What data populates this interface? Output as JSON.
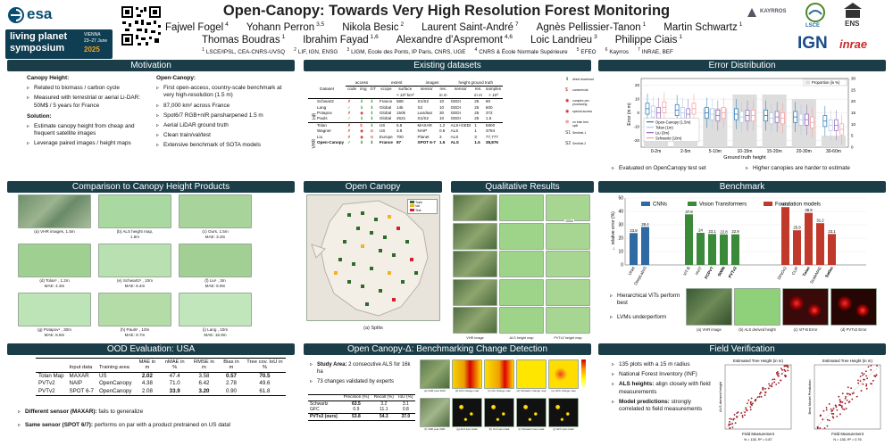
{
  "header": {
    "title": "Open-Canopy: Towards Very High Resolution Forest Monitoring",
    "esa": "esa",
    "lps_line1": "living planet",
    "lps_line2": "symposium",
    "lps_city": "VIENNA",
    "lps_dates": "23–27 June",
    "lps_year": "2025",
    "authors_line1": [
      {
        "name": "Fajwel Fogel",
        "sup": "4"
      },
      {
        "name": "Yohann Perron",
        "sup": "3,5"
      },
      {
        "name": "Nikola Besic",
        "sup": "2"
      },
      {
        "name": "Laurent Saint-André",
        "sup": "7"
      },
      {
        "name": "Agnès Pellissier-Tanon",
        "sup": "1"
      },
      {
        "name": "Martin Schwartz",
        "sup": "1"
      }
    ],
    "authors_line2": [
      {
        "name": "Thomas Boudras",
        "sup": "1"
      },
      {
        "name": "Ibrahim Fayad",
        "sup": "1,6"
      },
      {
        "name": "Alexandre d'Aspremont",
        "sup": "4,6"
      },
      {
        "name": "Loic Landrieu",
        "sup": "3"
      },
      {
        "name": "Philippe Ciais",
        "sup": "1"
      }
    ],
    "affiliations": [
      {
        "n": "1",
        "t": "LSCE/IPSL, CEA-CNRS-UVSQ"
      },
      {
        "n": "2",
        "t": "LIF, IGN, ENSG"
      },
      {
        "n": "3",
        "t": "LIGM, Ecole des Ponts, IP Paris, CNRS, UGE"
      },
      {
        "n": "4",
        "t": "CNRS & École Normale Supérieure"
      },
      {
        "n": "5",
        "t": "EFEO"
      },
      {
        "n": "6",
        "t": "Kayrros"
      },
      {
        "n": "7",
        "t": "INRAE, BEF"
      }
    ],
    "logos": [
      "KAYRROS",
      "LSCE",
      "ENS",
      "IGN",
      "inrae"
    ]
  },
  "motivation": {
    "title": "Motivation",
    "left_heading": "Canopy Height:",
    "left_bullets": [
      "Related to biomass / carbon cycle",
      "Measured with terrestrial or aerial Li-DAR: 50M$ / 5 years for France"
    ],
    "solution_heading": "Solution:",
    "solution_bullets": [
      "Estimate canopy height from cheap and frequent satellite images",
      "Leverage paired images / height maps"
    ],
    "right_heading": "Open-Canopy:",
    "right_bullets": [
      "First open-access, country-scale benchmark at very high-resolution (1.5 m)",
      "87,000 km² across France",
      "Spot6/7 RGB+nIR pansharpened  1.5 m",
      "Aerial LiDAR ground truth",
      "Clean train/val/test",
      "Extensive benchmark of SOTA models"
    ]
  },
  "datasets": {
    "title": "Existing datasets",
    "group_headers": [
      "access",
      "extent",
      "images",
      "height ground truth"
    ],
    "col_headers": [
      "Dataset",
      "code",
      "img",
      "GT",
      "scope",
      "surface",
      "sensor",
      "res.",
      "sensor",
      "res.",
      "samples"
    ],
    "units": [
      "",
      "",
      "",
      "",
      "",
      "× 10³ km²",
      "",
      "in m",
      "",
      "in m",
      "× 10³"
    ],
    "hr_label": "HR",
    "vhr_label": "VHR",
    "rows_hr": [
      [
        "Schwartz",
        "✗",
        "⬇",
        "⬇",
        "France",
        "588",
        "S1/S2",
        "10",
        "GEDI",
        "25",
        "90"
      ],
      [
        "Lang",
        "✓",
        "⬇",
        "⬇",
        "Global",
        "14k",
        "S2",
        "10",
        "GEDI",
        "25",
        "600"
      ],
      [
        "Potapov",
        "✗",
        "◉",
        "⬇",
        "Global",
        "150k",
        "Landsat",
        "30",
        "GEDI",
        "25",
        "372"
      ],
      [
        "Pauls",
        "✓",
        "⬇",
        "⬇",
        "Global",
        "2621",
        "S1/S2",
        "10",
        "GEDI",
        "25",
        "1.5"
      ]
    ],
    "rows_vhr": [
      [
        "Tolan",
        "✗",
        "$",
        "⬇",
        "US",
        "5.8",
        "MAXAR",
        "1.2",
        "ALS+GEDI",
        "1",
        "5800"
      ],
      [
        "Wagner",
        "✗",
        "◉",
        "⊘",
        "US",
        "3.8",
        "NAIP",
        "0.6",
        "ALS",
        "1",
        "3784"
      ],
      [
        "Liu",
        "✗",
        "◉",
        "⊘",
        "Europe",
        "700",
        "Planet",
        "3",
        "ALS",
        "3",
        "77,777"
      ],
      [
        "Open-Canopy",
        "✓",
        "⬇",
        "⬇",
        "France",
        "87",
        "SPOT 6-7",
        "1.5",
        "ALS",
        "1.5",
        "38,876"
      ]
    ],
    "legend": [
      {
        "icon": "⬇",
        "t": "direct download"
      },
      {
        "icon": "$",
        "t": "commercial"
      },
      {
        "icon": "◉",
        "t": "complex pre-processing"
      },
      {
        "icon": "◉",
        "t": "special access"
      },
      {
        "icon": "⊘",
        "t": "no train test split"
      },
      {
        "icon": "S1",
        "t": "Sentinel-1"
      },
      {
        "icon": "S2",
        "t": "Sentinel-2"
      }
    ]
  },
  "error_dist": {
    "title": "Error Distribution",
    "legend_prop": "Proportion (in %)",
    "ylabel": "Error (in m)",
    "xlabel": "Ground truth height",
    "y2label": "",
    "series": [
      {
        "name": "Open-Canopy (1.5m)",
        "color": "#1f77b4"
      },
      {
        "name": "Tolan (1m)",
        "color": "#aec7e8"
      },
      {
        "name": "Liu (3m)",
        "color": "#9467bd"
      },
      {
        "name": "Schwartz (10m)",
        "color": "#ff9896"
      }
    ],
    "categories": [
      "0-2m",
      "2-5m",
      "5-10m",
      "10-15m",
      "15-20m",
      "20-30m",
      "30-60m"
    ],
    "yticks": [
      "20",
      "10",
      "0",
      "-10",
      "-20"
    ],
    "y2ticks": [
      "30",
      "25",
      "20",
      "15",
      "10",
      "5",
      "0"
    ],
    "notes": [
      "Evaluated on OpenCanopy test set",
      "Higher canopies are harder to estimate"
    ]
  },
  "comparison": {
    "title": "Comparison to Canopy Height Products",
    "captions": [
      [
        "(a) VHR images, 1.5m",
        ""
      ],
      [
        "(b) ALS height map,",
        "1.5m"
      ],
      [
        "(c) Ours, 1.5m",
        "MAE: 3.3m"
      ],
      [
        "(d) Tolan¹ , 1.2m",
        "MAE: 4.3m"
      ],
      [
        "(e) Schwartz¹ , 10m",
        "MAE: 6.4m"
      ],
      [
        "(f) Liu¹ , 3m",
        "MAE: 6.9m"
      ],
      [
        "(g) Potapov¹ , 30m",
        "MAE: 8.8m"
      ],
      [
        "(h) Pauls¹ , 10m",
        "MAE: 9.7m"
      ],
      [
        "(i) Lang , 10m",
        "MAE: 15.9m"
      ]
    ]
  },
  "open_canopy": {
    "title": "Open Canopy",
    "caption": "(a) Splits",
    "legend": [
      "Train",
      "Val",
      "Test"
    ]
  },
  "qualitative": {
    "title": "Qualitative Results",
    "scale": "100m",
    "captions": [
      "VHR image",
      "ALS height map",
      "PVTv2 height map"
    ]
  },
  "benchmark": {
    "title": "Benchmark",
    "ylabel": "← relative error (%)",
    "yticks": [
      "50",
      "40",
      "30",
      "20",
      "10",
      "0"
    ],
    "legend": [
      "CNNs",
      "Vision Transformers",
      "Foundation models"
    ],
    "cnn": [
      {
        "label": "UNet",
        "v": 23.8
      },
      {
        "label": "DeepLabv3",
        "v": 28.4
      }
    ],
    "vit": [
      {
        "label": "ViT-B",
        "v": 37.8
      },
      {
        "label": "HViT",
        "v": 24
      },
      {
        "label": "PCPVT",
        "v": 23.1
      },
      {
        "label": "SWIN",
        "v": 22.8
      },
      {
        "label": "PVTv2",
        "v": 22.9
      }
    ],
    "fm": [
      {
        "label": "DINOv2",
        "v": 43.2
      },
      {
        "label": "CLIP",
        "v": 25.9
      },
      {
        "label": "Tolan",
        "v": 38.9
      },
      {
        "label": "ScaleMAE",
        "v": 31.2
      },
      {
        "label": "Satlas",
        "v": 23.1
      }
    ],
    "notes": [
      "Hierarchical ViTs perform best",
      "LVMs underperform"
    ],
    "thumbs": [
      "(a) VHR image",
      "(b) ALS derived height",
      "(c) ViT-B Error",
      "(d) PVTv2 Error"
    ]
  },
  "ood": {
    "title": "OOD Evaluation: USA",
    "headers": [
      "",
      "Input data",
      "Training area",
      "MAE in m",
      "nMAE in %",
      "RMSE in m",
      "Bias in m",
      "Tree cov. IoU in %"
    ],
    "rows": [
      [
        "Tolan Map",
        "MAXAR",
        "US",
        "2.02",
        "47.4",
        "3.58",
        "0.57",
        "70.5"
      ],
      [
        "PVTv2",
        "NAIP",
        "OpenCanopy",
        "4.38",
        "71.0",
        "6.42",
        "2.78",
        "49.6"
      ],
      [
        "PVTv2",
        "SPOT 6-7",
        "OpenCanopy",
        "2.08",
        "33.9",
        "3.20",
        "0.90",
        "61.8"
      ]
    ],
    "notes": [
      {
        "b": "Different sensor (MAXAR):",
        "t": " fails to generalize"
      },
      {
        "b": "Same sensor (SPOT 6/7):",
        "t": " performs on par with a product pretrained on US data!"
      }
    ]
  },
  "change": {
    "title": "Open Canopy-Δ: Benchmarking Change Detection",
    "study_b": "Study Area:",
    "study_t": " 2 consecutive ALS for 16k ha",
    "validated": "73 changes validated by experts",
    "headers": [
      "",
      "Precision (%)",
      "Recall (%)",
      "IoU (%)"
    ],
    "rows": [
      [
        "Schwartz",
        "63.5",
        "3.2",
        "3.1"
      ],
      [
        "GFC",
        "0.9",
        "11.1",
        "0.8"
      ],
      [
        "PVTv2 (ours)",
        "53.8",
        "54.3",
        "37.0"
      ]
    ],
    "img_caps": [
      "(a) VHR year 2021",
      "(b) ALS change map",
      "(c) Our change map",
      "(d) Schwartz change map",
      "(e) GFC change map",
      "(f) VHR year 2021",
      "(g) ALS loss mask",
      "(h) Our loss mask",
      "(i) Schwartz loss mask",
      "(j) GFC loss mask"
    ]
  },
  "verification": {
    "title": "Field Verification",
    "bullets": [
      {
        "b": "",
        "t": "135 plots with a 15 m radius"
      },
      {
        "b": "",
        "t": "National Forest Inventory (INF)"
      },
      {
        "b": "ALS heights:",
        "t": " align closely with field measurements"
      },
      {
        "b": "Model predictions:",
        "t": " strongly correlated to field measurements"
      }
    ],
    "plot1": {
      "title": "Estimated Tree Height (in m)",
      "ylabel": "ALS-derived height",
      "xlabel": "Field Measurement",
      "stat": "N = 135, R² = 0.87"
    },
    "plot2": {
      "title": "Estimated Tree Height (in m)",
      "ylabel": "Best Model Prediction",
      "xlabel": "Field Measurement",
      "stat": "N = 135, R² = 0.76"
    }
  }
}
